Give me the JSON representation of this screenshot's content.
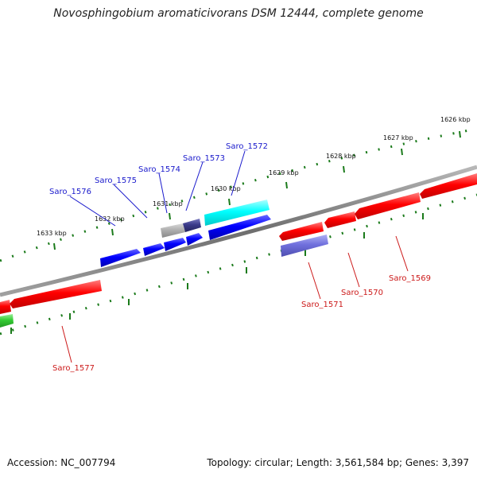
{
  "title": "Novosphingobium aromaticivorans DSM 12444, complete genome",
  "footer": {
    "accession": "Accession: NC_007794",
    "summary": "Topology: circular; Length: 3,561,584 bp; Genes: 3,397"
  },
  "scale_unit": "kbp",
  "ticks": [
    "1626 kbp",
    "1627 kbp",
    "1628 kbp",
    "1629 kbp",
    "1630 kbp",
    "1631 kbp",
    "1632 kbp",
    "1633 kbp"
  ],
  "colors": {
    "backbone": "#8a8a8a",
    "tick": "#1a7a1a",
    "label_forward": "#1a1acc",
    "label_reverse": "#cc1a1a",
    "red": "#ff0000",
    "blue": "#0000ff",
    "cyan": "#00ffff",
    "gray": "#b0b0b0",
    "dark_slate": "#3a3a8a",
    "lavender": "#7070dd",
    "green": "#33cc33"
  },
  "genes": {
    "forward": [
      "Saro_1576",
      "Saro_1575",
      "Saro_1574",
      "Saro_1573",
      "Saro_1572"
    ],
    "reverse": [
      "Saro_1577",
      "Saro_1571",
      "Saro_1570",
      "Saro_1569"
    ]
  }
}
